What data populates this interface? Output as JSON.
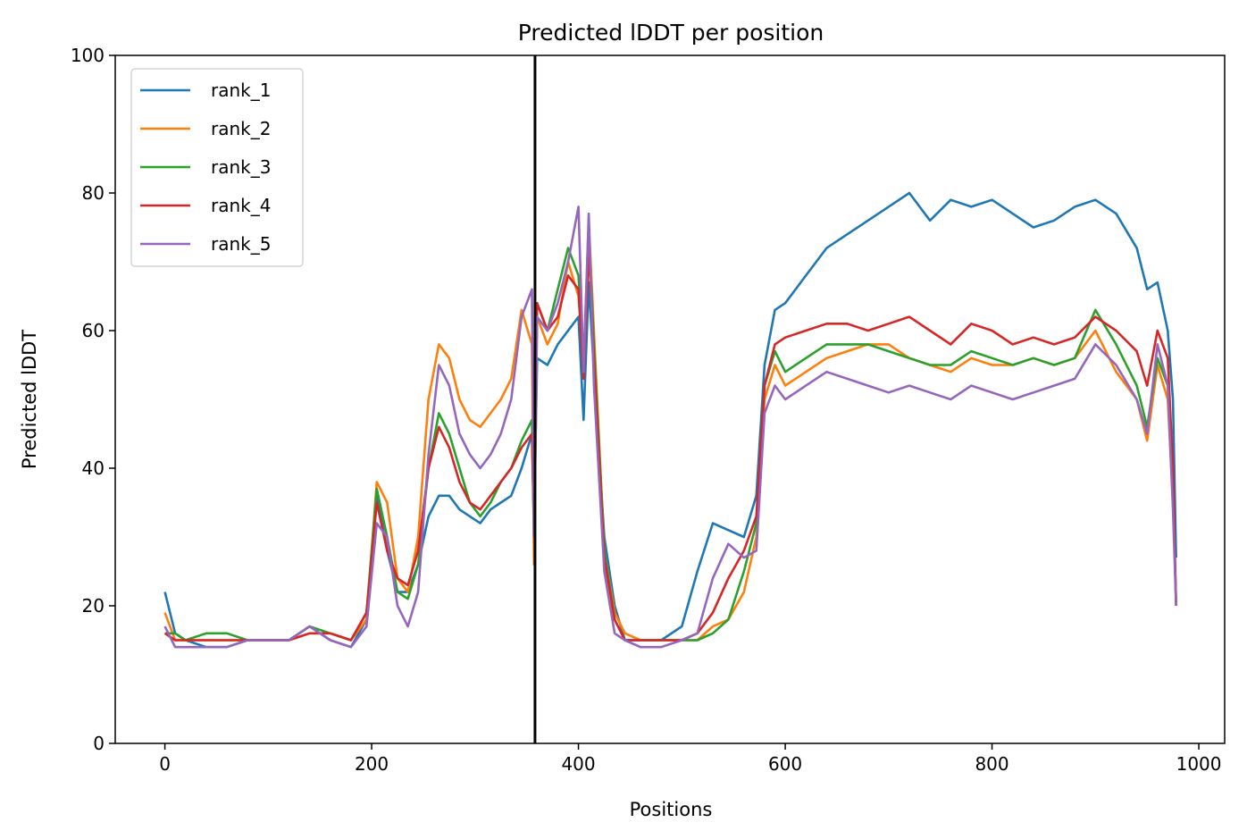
{
  "chart_data": {
    "type": "line",
    "title": "Predicted lDDT per position",
    "xlabel": "Positions",
    "ylabel": "Predicted lDDT",
    "xlim": [
      -48,
      1025
    ],
    "ylim": [
      0,
      100
    ],
    "xticks": [
      0,
      200,
      400,
      600,
      800,
      1000
    ],
    "yticks": [
      0,
      20,
      40,
      60,
      80,
      100
    ],
    "legend_position": "top-left",
    "grid": false,
    "vline": {
      "x": 358,
      "color": "#000000"
    },
    "series": [
      {
        "name": "rank_1",
        "color": "#1f77b4",
        "x": [
          0,
          10,
          20,
          40,
          60,
          80,
          100,
          120,
          140,
          160,
          180,
          195,
          205,
          215,
          225,
          235,
          245,
          255,
          265,
          275,
          285,
          295,
          305,
          315,
          325,
          335,
          345,
          355,
          357,
          360,
          370,
          380,
          390,
          400,
          405,
          410,
          415,
          425,
          435,
          445,
          460,
          480,
          500,
          515,
          530,
          545,
          560,
          572,
          580,
          590,
          600,
          620,
          640,
          660,
          680,
          700,
          720,
          740,
          760,
          780,
          800,
          820,
          840,
          860,
          880,
          900,
          920,
          940,
          950,
          960,
          970,
          975,
          978
        ],
        "y": [
          22,
          16,
          15,
          14,
          14,
          15,
          15,
          15,
          17,
          15,
          14,
          18,
          36,
          28,
          22,
          22,
          26,
          33,
          36,
          36,
          34,
          33,
          32,
          34,
          35,
          36,
          40,
          45,
          31,
          56,
          55,
          58,
          60,
          62,
          47,
          67,
          54,
          30,
          20,
          15,
          15,
          15,
          17,
          25,
          32,
          31,
          30,
          36,
          55,
          63,
          64,
          68,
          72,
          74,
          76,
          78,
          80,
          76,
          79,
          78,
          79,
          77,
          75,
          76,
          78,
          79,
          77,
          72,
          66,
          67,
          60,
          50,
          27
        ]
      },
      {
        "name": "rank_2",
        "color": "#ff7f0e",
        "x": [
          0,
          10,
          20,
          40,
          60,
          80,
          100,
          120,
          140,
          160,
          180,
          195,
          205,
          215,
          225,
          235,
          245,
          255,
          265,
          275,
          285,
          295,
          305,
          315,
          325,
          335,
          345,
          355,
          357,
          360,
          370,
          380,
          390,
          400,
          405,
          410,
          415,
          425,
          435,
          445,
          460,
          480,
          500,
          515,
          530,
          545,
          560,
          572,
          580,
          590,
          600,
          620,
          640,
          660,
          680,
          700,
          720,
          740,
          760,
          780,
          800,
          820,
          840,
          860,
          880,
          900,
          920,
          940,
          950,
          960,
          970,
          975,
          978
        ],
        "y": [
          19,
          15,
          15,
          15,
          15,
          15,
          15,
          15,
          16,
          16,
          15,
          18,
          38,
          35,
          24,
          22,
          30,
          50,
          58,
          56,
          50,
          47,
          46,
          48,
          50,
          53,
          63,
          58,
          26,
          62,
          58,
          61,
          70,
          65,
          55,
          76,
          60,
          28,
          19,
          16,
          15,
          15,
          15,
          15,
          17,
          18,
          22,
          30,
          50,
          55,
          52,
          54,
          56,
          57,
          58,
          58,
          56,
          55,
          54,
          56,
          55,
          55,
          56,
          55,
          56,
          60,
          54,
          50,
          44,
          55,
          50,
          35,
          21
        ]
      },
      {
        "name": "rank_3",
        "color": "#2ca02c",
        "x": [
          0,
          10,
          20,
          40,
          60,
          80,
          100,
          120,
          140,
          160,
          180,
          195,
          205,
          215,
          225,
          235,
          245,
          255,
          265,
          275,
          285,
          295,
          305,
          315,
          325,
          335,
          345,
          355,
          357,
          360,
          370,
          380,
          390,
          400,
          405,
          410,
          415,
          425,
          435,
          445,
          460,
          480,
          500,
          515,
          530,
          545,
          560,
          572,
          580,
          590,
          600,
          620,
          640,
          660,
          680,
          700,
          720,
          740,
          760,
          780,
          800,
          820,
          840,
          860,
          880,
          900,
          920,
          940,
          950,
          960,
          970,
          975,
          978
        ],
        "y": [
          16,
          16,
          15,
          16,
          16,
          15,
          15,
          15,
          17,
          16,
          15,
          19,
          37,
          30,
          22,
          21,
          26,
          40,
          48,
          45,
          40,
          35,
          33,
          35,
          38,
          40,
          44,
          47,
          30,
          64,
          60,
          66,
          72,
          68,
          55,
          74,
          58,
          28,
          18,
          15,
          15,
          15,
          15,
          15,
          16,
          18,
          25,
          32,
          52,
          57,
          54,
          56,
          58,
          58,
          58,
          57,
          56,
          55,
          55,
          57,
          56,
          55,
          56,
          55,
          56,
          63,
          58,
          52,
          46,
          56,
          52,
          38,
          20
        ]
      },
      {
        "name": "rank_4",
        "color": "#d62728",
        "x": [
          0,
          10,
          20,
          40,
          60,
          80,
          100,
          120,
          140,
          160,
          180,
          195,
          205,
          215,
          225,
          235,
          245,
          255,
          265,
          275,
          285,
          295,
          305,
          315,
          325,
          335,
          345,
          355,
          357,
          360,
          370,
          380,
          390,
          400,
          405,
          410,
          415,
          425,
          435,
          445,
          460,
          480,
          500,
          515,
          530,
          545,
          560,
          572,
          580,
          590,
          600,
          620,
          640,
          660,
          680,
          700,
          720,
          740,
          760,
          780,
          800,
          820,
          840,
          860,
          880,
          900,
          920,
          940,
          950,
          960,
          970,
          975,
          978
        ],
        "y": [
          16,
          15,
          15,
          15,
          15,
          15,
          15,
          15,
          16,
          16,
          15,
          19,
          35,
          28,
          24,
          23,
          28,
          40,
          46,
          43,
          38,
          35,
          34,
          36,
          38,
          40,
          43,
          45,
          32,
          64,
          60,
          62,
          68,
          66,
          53,
          72,
          56,
          27,
          18,
          15,
          15,
          15,
          15,
          16,
          19,
          24,
          28,
          33,
          52,
          58,
          59,
          60,
          61,
          61,
          60,
          61,
          62,
          60,
          58,
          61,
          60,
          58,
          59,
          58,
          59,
          62,
          60,
          57,
          52,
          60,
          56,
          40,
          20
        ]
      },
      {
        "name": "rank_5",
        "color": "#9467bd",
        "x": [
          0,
          10,
          20,
          40,
          60,
          80,
          100,
          120,
          140,
          160,
          180,
          195,
          205,
          215,
          225,
          235,
          245,
          255,
          265,
          275,
          285,
          295,
          305,
          315,
          325,
          335,
          345,
          355,
          357,
          360,
          370,
          380,
          390,
          400,
          405,
          410,
          415,
          425,
          435,
          445,
          460,
          480,
          500,
          515,
          530,
          545,
          560,
          572,
          580,
          590,
          600,
          620,
          640,
          660,
          680,
          700,
          720,
          740,
          760,
          780,
          800,
          820,
          840,
          860,
          880,
          900,
          920,
          940,
          950,
          960,
          970,
          975,
          978
        ],
        "y": [
          17,
          14,
          14,
          14,
          14,
          15,
          15,
          15,
          17,
          15,
          14,
          17,
          32,
          30,
          20,
          17,
          22,
          42,
          55,
          52,
          45,
          42,
          40,
          42,
          45,
          50,
          62,
          66,
          30,
          62,
          60,
          64,
          70,
          78,
          54,
          77,
          52,
          25,
          16,
          15,
          14,
          14,
          15,
          16,
          24,
          29,
          27,
          28,
          48,
          52,
          50,
          52,
          54,
          53,
          52,
          51,
          52,
          51,
          50,
          52,
          51,
          50,
          51,
          52,
          53,
          58,
          55,
          50,
          45,
          58,
          52,
          34,
          20
        ]
      }
    ]
  }
}
